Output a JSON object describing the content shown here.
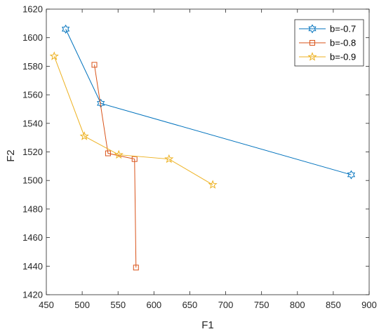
{
  "chart_data": {
    "type": "line",
    "xlabel": "F1",
    "ylabel": "F2",
    "xlim": [
      450,
      900
    ],
    "ylim": [
      1420,
      1620
    ],
    "xticks": [
      450,
      500,
      550,
      600,
      650,
      700,
      750,
      800,
      850,
      900
    ],
    "yticks": [
      1420,
      1440,
      1460,
      1480,
      1500,
      1520,
      1540,
      1560,
      1580,
      1600,
      1620
    ],
    "grid": false,
    "legend_position": "top-right",
    "series": [
      {
        "name": "b=-0.7",
        "color": "#0072BD",
        "marker": "hexagram",
        "x": [
          477,
          526,
          875
        ],
        "y": [
          1606,
          1554,
          1504
        ]
      },
      {
        "name": "b=-0.8",
        "color": "#D95319",
        "marker": "square",
        "x": [
          517,
          536,
          573,
          575
        ],
        "y": [
          1581,
          1519,
          1515,
          1439
        ]
      },
      {
        "name": "b=-0.9",
        "color": "#EDB120",
        "marker": "pentagram",
        "x": [
          461,
          503,
          551,
          621,
          682
        ],
        "y": [
          1587,
          1531,
          1518,
          1515,
          1497
        ]
      }
    ]
  }
}
